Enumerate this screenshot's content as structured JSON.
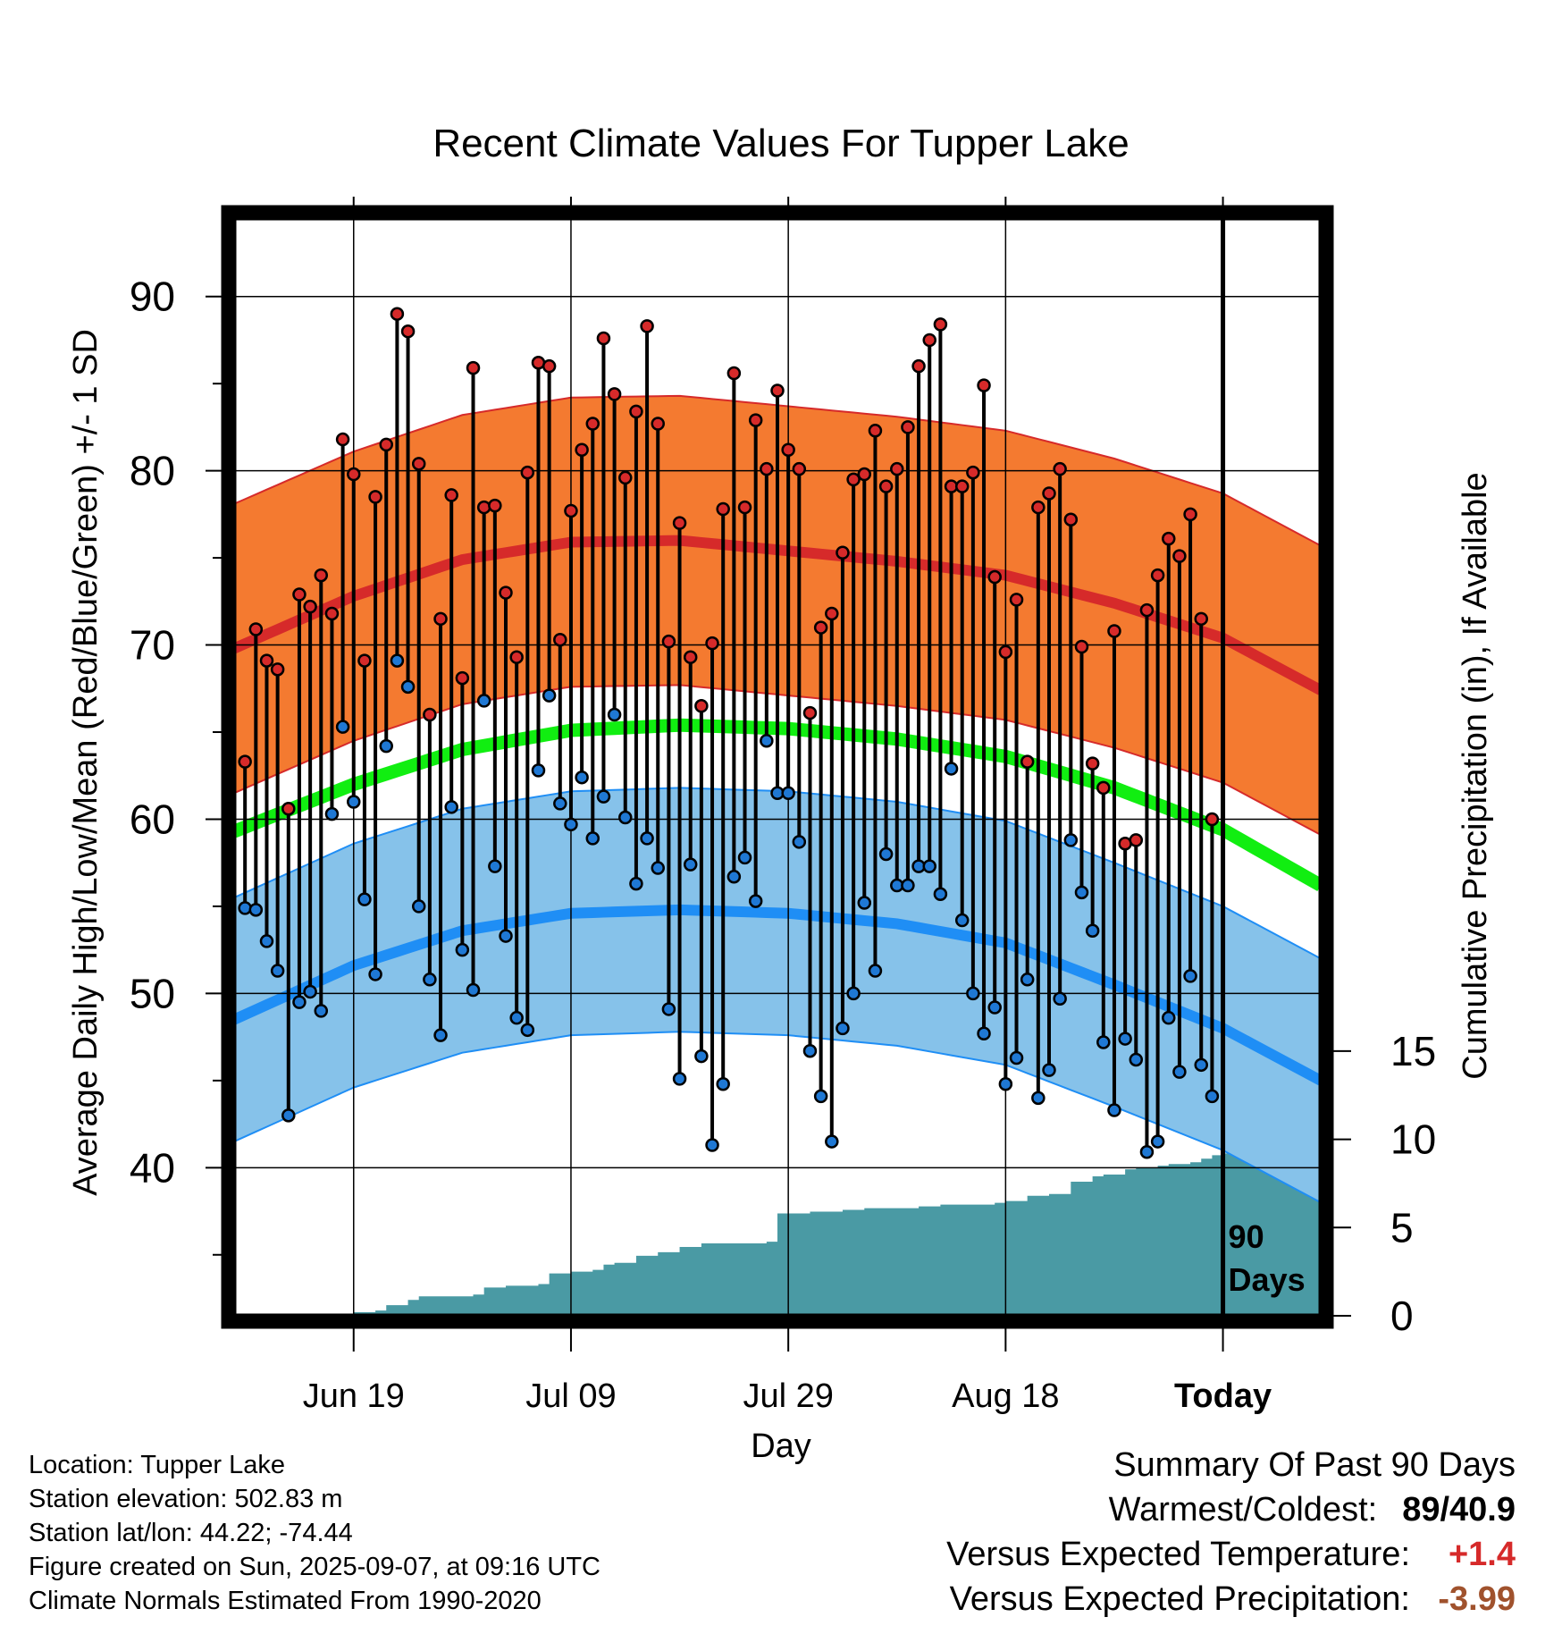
{
  "chart_data": {
    "type": "line",
    "title": "Recent Climate Values For Tupper Lake",
    "xlabel": "Day",
    "ylabel": "Average Daily High/Low/Mean (Red/Blue/Green) +/- 1 SD",
    "ylabel_right": "Cumulative Precipitation (in), If Available",
    "ylim": [
      31.5,
      94.5
    ],
    "ylim_right": [
      0,
      62.2
    ],
    "x_range_days": [
      -91,
      9
    ],
    "grid": true,
    "y_ticks": [
      "40",
      "50",
      "60",
      "70",
      "80",
      "90"
    ],
    "y_right_ticks": [
      "0",
      "5",
      "10",
      "15"
    ],
    "x_ticks": [
      {
        "day": -80,
        "label": "Jun 19"
      },
      {
        "day": -60,
        "label": "Jul 09"
      },
      {
        "day": -40,
        "label": "Jul 29"
      },
      {
        "day": -20,
        "label": "Aug 18"
      },
      {
        "day": 0,
        "label": "Today"
      }
    ],
    "period_label": "90\nDays",
    "series": [
      {
        "name": "High",
        "color": "#d62a2a",
        "values": [
          63.3,
          70.9,
          69.1,
          68.6,
          60.6,
          72.9,
          72.2,
          74.0,
          71.8,
          81.8,
          79.8,
          69.1,
          78.5,
          81.5,
          89.0,
          88.0,
          80.4,
          66.0,
          71.5,
          78.6,
          68.1,
          85.9,
          77.9,
          78.0,
          73.0,
          69.3,
          79.9,
          86.2,
          86.0,
          70.3,
          77.7,
          81.2,
          82.7,
          87.6,
          84.4,
          79.6,
          83.4,
          88.3,
          82.7,
          70.2,
          77.0,
          69.3,
          66.5,
          70.1,
          77.8,
          85.6,
          77.9,
          82.9,
          80.1,
          84.6,
          81.2,
          80.1,
          66.1,
          71.0,
          71.8,
          75.3,
          79.5,
          79.8,
          82.3,
          79.1,
          80.1,
          82.5,
          86.0,
          87.5,
          88.4,
          79.1,
          79.1,
          79.9,
          84.9,
          73.9,
          69.6,
          72.6,
          63.3,
          77.9,
          78.7,
          80.1,
          77.2,
          69.9,
          63.2,
          61.8,
          70.8,
          58.6,
          58.8,
          72.0,
          74.0,
          76.1,
          75.1,
          77.5,
          71.5,
          60.0
        ]
      },
      {
        "name": "Low",
        "color": "#1f78d4",
        "values": [
          54.9,
          54.8,
          53.0,
          51.3,
          43.0,
          49.5,
          50.1,
          49.0,
          60.3,
          65.3,
          61.0,
          55.4,
          51.1,
          64.2,
          69.1,
          67.6,
          55.0,
          50.8,
          47.6,
          60.7,
          52.5,
          50.2,
          66.8,
          57.3,
          53.3,
          48.6,
          47.9,
          62.8,
          67.1,
          60.9,
          59.7,
          62.4,
          58.9,
          61.3,
          66.0,
          60.1,
          56.3,
          58.9,
          57.2,
          49.1,
          45.1,
          57.4,
          46.4,
          41.3,
          44.8,
          56.7,
          57.8,
          55.3,
          64.5,
          61.5,
          61.5,
          58.7,
          46.7,
          44.1,
          41.5,
          48.0,
          50.0,
          55.2,
          51.3,
          58.0,
          56.2,
          56.2,
          57.3,
          57.3,
          55.7,
          62.9,
          54.2,
          50.0,
          47.7,
          49.2,
          44.8,
          46.3,
          50.8,
          44.0,
          45.6,
          49.7,
          58.8,
          55.8,
          53.6,
          47.2,
          43.3,
          47.4,
          46.2,
          40.9,
          41.5,
          48.6,
          45.5,
          51.0,
          45.9,
          44.1
        ]
      },
      {
        "name": "Normal High",
        "color": "#d62a2a",
        "band_color": "#f47a30",
        "sd": 8.3,
        "points": [
          [
            -91,
            69.8
          ],
          [
            -80,
            72.8
          ],
          [
            -70,
            74.9
          ],
          [
            -60,
            75.9
          ],
          [
            -50,
            76.0
          ],
          [
            -40,
            75.4
          ],
          [
            -30,
            74.8
          ],
          [
            -20,
            74.0
          ],
          [
            -10,
            72.4
          ],
          [
            0,
            70.4
          ],
          [
            9,
            67.4
          ]
        ]
      },
      {
        "name": "Normal Mean",
        "color": "#11ee11",
        "points": [
          [
            -91,
            59.3
          ],
          [
            -80,
            62.0
          ],
          [
            -70,
            64.0
          ],
          [
            -60,
            65.1
          ],
          [
            -50,
            65.4
          ],
          [
            -40,
            65.2
          ],
          [
            -30,
            64.6
          ],
          [
            -20,
            63.6
          ],
          [
            -10,
            61.8
          ],
          [
            0,
            59.4
          ],
          [
            9,
            56.2
          ]
        ]
      },
      {
        "name": "Normal Low",
        "color": "#1f8ef5",
        "band_color": "#86c2ea",
        "sd": 7.0,
        "points": [
          [
            -91,
            48.5
          ],
          [
            -80,
            51.6
          ],
          [
            -70,
            53.6
          ],
          [
            -60,
            54.6
          ],
          [
            -50,
            54.8
          ],
          [
            -40,
            54.6
          ],
          [
            -30,
            54.0
          ],
          [
            -20,
            52.9
          ],
          [
            -10,
            50.5
          ],
          [
            0,
            48.0
          ],
          [
            9,
            45.0
          ]
        ]
      },
      {
        "name": "Precipitation",
        "color": "#4a9aa4",
        "points": [
          [
            -91,
            0
          ],
          [
            -81,
            0
          ],
          [
            -80,
            0.2
          ],
          [
            -78,
            0.3
          ],
          [
            -77,
            0.6
          ],
          [
            -75,
            0.9
          ],
          [
            -74,
            1.1
          ],
          [
            -69,
            1.2
          ],
          [
            -68,
            1.6
          ],
          [
            -66,
            1.7
          ],
          [
            -63,
            1.8
          ],
          [
            -62,
            2.4
          ],
          [
            -60,
            2.5
          ],
          [
            -58,
            2.6
          ],
          [
            -57,
            2.9
          ],
          [
            -56,
            3.0
          ],
          [
            -54,
            3.4
          ],
          [
            -52,
            3.6
          ],
          [
            -50,
            3.9
          ],
          [
            -48,
            4.1
          ],
          [
            -42,
            4.2
          ],
          [
            -41,
            5.8
          ],
          [
            -38,
            5.9
          ],
          [
            -35,
            6.0
          ],
          [
            -33,
            6.1
          ],
          [
            -30,
            6.1
          ],
          [
            -28,
            6.2
          ],
          [
            -26,
            6.3
          ],
          [
            -24,
            6.3
          ],
          [
            -21,
            6.4
          ],
          [
            -20,
            6.5
          ],
          [
            -18,
            6.8
          ],
          [
            -16,
            6.9
          ],
          [
            -14,
            7.6
          ],
          [
            -12,
            7.9
          ],
          [
            -11,
            8.0
          ],
          [
            -9,
            8.3
          ],
          [
            -8,
            8.4
          ],
          [
            -6,
            8.5
          ],
          [
            -5,
            8.6
          ],
          [
            -3,
            8.7
          ],
          [
            -2,
            8.9
          ],
          [
            -1,
            9.1
          ],
          [
            0,
            9.2
          ],
          [
            9,
            9.2
          ]
        ]
      }
    ]
  },
  "footer": {
    "location": "Location: Tupper Lake",
    "elevation": "Station elevation: 502.83 m",
    "latlon": "Station lat/lon: 44.22; -74.44",
    "created": "Figure created on Sun, 2025-09-07, at 09:16 UTC",
    "normals": "Climate Normals Estimated From 1990-2020"
  },
  "summary": {
    "title": "Summary Of Past 90 Days",
    "warmest_label": "Warmest/Coldest:",
    "warmest_value": "89/40.9",
    "temp_label": "Versus Expected Temperature:",
    "temp_value": "+1.4",
    "precip_label": "Versus Expected Precipitation:",
    "precip_value": "-3.99"
  }
}
